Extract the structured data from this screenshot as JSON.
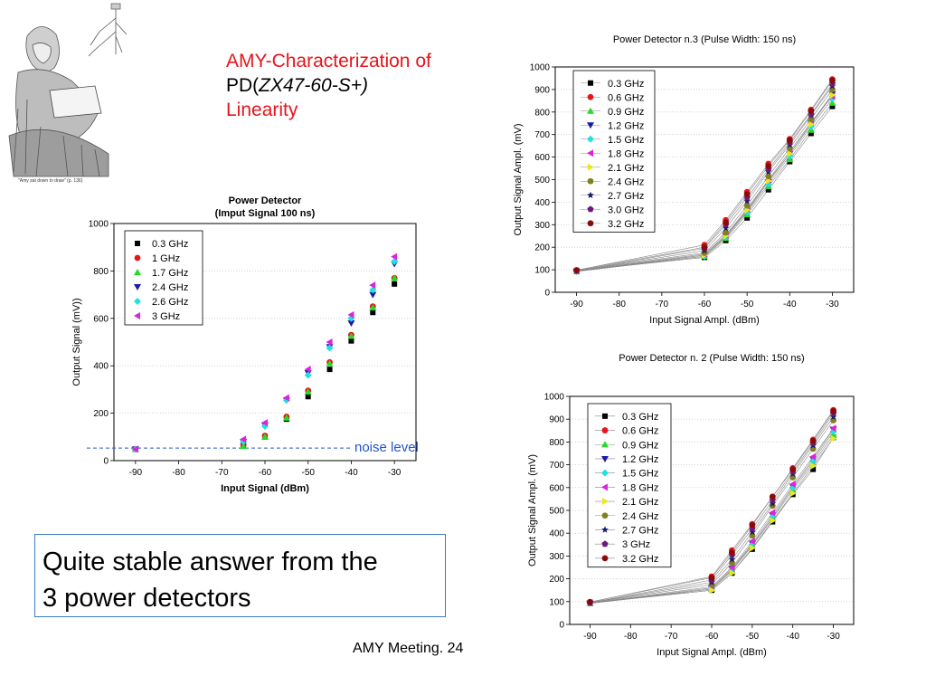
{
  "title": {
    "line1": "AMY-Characterization of",
    "line2_prefix": "PD(",
    "line2_model": "ZX47-60-S+)",
    "line3": "Linearity"
  },
  "illustration": {
    "caption": "\"Amy sat down to draw\" (p. 136)",
    "icon": "girl-drawing-illustration"
  },
  "callout": {
    "line1": "Quite stable answer from the",
    "line2": "3 power detectors"
  },
  "footer": "AMY Meeting. 24",
  "chart_data": [
    {
      "type": "scatter",
      "title": "Power Detector",
      "subtitle": "(Imput Signal 100 ns)",
      "xlabel": "Input Signal (dBm)",
      "ylabel": "Output Signal (mV))",
      "xlim": [
        -95,
        -25
      ],
      "ylim": [
        0,
        1000
      ],
      "xticks": [
        -90,
        -80,
        -70,
        -60,
        -50,
        -40,
        -30
      ],
      "yticks": [
        0,
        200,
        400,
        600,
        800,
        1000
      ],
      "grid": "horizontal-dotted",
      "legend": "top-left",
      "annotation": {
        "text": "noise level",
        "y": 53,
        "color": "#2255cc"
      },
      "x": [
        -90,
        -65,
        -60,
        -55,
        -50,
        -45,
        -40,
        -35,
        -30
      ],
      "series": [
        {
          "name": "0.3 GHz",
          "marker": "square",
          "color": "#000000",
          "values": [
            48,
            65,
            100,
            175,
            270,
            385,
            505,
            625,
            745
          ]
        },
        {
          "name": "1   GHz",
          "marker": "circle",
          "color": "#e8141c",
          "values": [
            48,
            68,
            105,
            185,
            295,
            415,
            530,
            650,
            770
          ]
        },
        {
          "name": "1.7 GHz",
          "marker": "triangle-up",
          "color": "#22dd22",
          "values": [
            48,
            60,
            100,
            180,
            290,
            410,
            525,
            645,
            770
          ]
        },
        {
          "name": "2.4 GHz",
          "marker": "triangle-down",
          "color": "#1a1aa6",
          "values": [
            48,
            80,
            150,
            255,
            370,
            480,
            580,
            700,
            830
          ]
        },
        {
          "name": "2.6 GHz",
          "marker": "diamond",
          "color": "#22e0e0",
          "values": [
            48,
            80,
            145,
            255,
            360,
            475,
            600,
            720,
            840
          ]
        },
        {
          "name": "3   GHz",
          "marker": "triangle-left",
          "color": "#dd22dd",
          "values": [
            48,
            90,
            160,
            265,
            385,
            500,
            615,
            740,
            860
          ]
        }
      ]
    },
    {
      "type": "line",
      "title": "Power Detector n.3 (Pulse Width: 150 ns)",
      "xlabel": "Input Signal Ampl. (dBm)",
      "ylabel": "Output Signal Ampl. (mV)",
      "xlim": [
        -95,
        -25
      ],
      "ylim": [
        0,
        1000
      ],
      "xticks": [
        -90,
        -80,
        -70,
        -60,
        -50,
        -40,
        -30
      ],
      "yticks": [
        0,
        100,
        200,
        300,
        400,
        500,
        600,
        700,
        800,
        900,
        1000
      ],
      "grid": "horizontal-dotted",
      "legend": "top-left",
      "x": [
        -90,
        -60,
        -55,
        -50,
        -45,
        -40,
        -35,
        -30
      ],
      "series": [
        {
          "name": "0.3 GHz",
          "marker": "square",
          "color": "#000000",
          "values": [
            95,
            155,
            230,
            330,
            455,
            580,
            705,
            825
          ]
        },
        {
          "name": "0.6 GHz",
          "marker": "circle",
          "color": "#e8141c",
          "values": [
            98,
            210,
            320,
            445,
            570,
            680,
            810,
            945
          ]
        },
        {
          "name": "0.9 GHz",
          "marker": "triangle-up",
          "color": "#22dd22",
          "values": [
            92,
            160,
            240,
            345,
            470,
            590,
            720,
            840
          ]
        },
        {
          "name": "1.2 GHz",
          "marker": "triangle-down",
          "color": "#1a1aa6",
          "values": [
            93,
            165,
            250,
            360,
            490,
            615,
            750,
            880
          ]
        },
        {
          "name": "1.5 GHz",
          "marker": "diamond",
          "color": "#22e0e0",
          "values": [
            94,
            160,
            245,
            355,
            480,
            605,
            735,
            860
          ]
        },
        {
          "name": "1.8 GHz",
          "marker": "triangle-left",
          "color": "#dd22dd",
          "values": [
            95,
            170,
            255,
            370,
            500,
            625,
            755,
            870
          ]
        },
        {
          "name": "2.1 GHz",
          "marker": "triangle-right",
          "color": "#e8e820",
          "values": [
            96,
            165,
            250,
            365,
            495,
            615,
            745,
            875
          ]
        },
        {
          "name": "2.4 GHz",
          "marker": "circle",
          "color": "#808020",
          "values": [
            97,
            175,
            265,
            385,
            515,
            640,
            770,
            900
          ]
        },
        {
          "name": "2.7 GHz",
          "marker": "star",
          "color": "#1a1a66",
          "values": [
            96,
            185,
            285,
            405,
            535,
            655,
            785,
            915
          ]
        },
        {
          "name": "3.0 GHz",
          "marker": "pentagon",
          "color": "#6a1a80",
          "values": [
            95,
            195,
            300,
            420,
            545,
            665,
            790,
            925
          ]
        },
        {
          "name": "3.2 GHz",
          "marker": "circle",
          "color": "#8a0a0a",
          "values": [
            98,
            200,
            310,
            435,
            560,
            675,
            805,
            940
          ]
        }
      ]
    },
    {
      "type": "line",
      "title": "Power Detector n. 2 (Pulse Width: 150 ns)",
      "xlabel": "Input Signal Ampl. (dBm)",
      "ylabel": "Output Signal Ampl. (mV)",
      "xlim": [
        -95,
        -25
      ],
      "ylim": [
        0,
        1000
      ],
      "xticks": [
        -90,
        -80,
        -70,
        -60,
        -50,
        -40,
        -30
      ],
      "yticks": [
        0,
        100,
        200,
        300,
        400,
        500,
        600,
        700,
        800,
        900,
        1000
      ],
      "grid": "horizontal-dotted",
      "legend": "top-left",
      "x": [
        -90,
        -60,
        -55,
        -50,
        -45,
        -40,
        -35,
        -30
      ],
      "series": [
        {
          "name": "0.3 GHz",
          "marker": "square",
          "color": "#000000",
          "values": [
            93,
            150,
            225,
            330,
            450,
            570,
            680,
            820
          ]
        },
        {
          "name": "0.6 GHz",
          "marker": "circle",
          "color": "#e8141c",
          "values": [
            98,
            210,
            325,
            440,
            560,
            685,
            810,
            940
          ]
        },
        {
          "name": "0.9 GHz",
          "marker": "triangle-up",
          "color": "#22dd22",
          "values": [
            92,
            155,
            235,
            345,
            465,
            590,
            705,
            830
          ]
        },
        {
          "name": "1.2 GHz",
          "marker": "triangle-down",
          "color": "#1a1aa6",
          "values": [
            93,
            160,
            245,
            355,
            480,
            605,
            725,
            855
          ]
        },
        {
          "name": "1.5 GHz",
          "marker": "diamond",
          "color": "#22e0e0",
          "values": [
            94,
            155,
            240,
            350,
            470,
            600,
            715,
            845
          ]
        },
        {
          "name": "1.8 GHz",
          "marker": "triangle-left",
          "color": "#dd22dd",
          "values": [
            95,
            165,
            250,
            365,
            490,
            615,
            735,
            860
          ]
        },
        {
          "name": "2.1 GHz",
          "marker": "triangle-right",
          "color": "#e8e820",
          "values": [
            95,
            150,
            225,
            335,
            455,
            575,
            695,
            815
          ]
        },
        {
          "name": "2.4 GHz",
          "marker": "circle",
          "color": "#808020",
          "values": [
            96,
            175,
            270,
            390,
            520,
            645,
            770,
            895
          ]
        },
        {
          "name": "2.7 GHz",
          "marker": "star",
          "color": "#1a1a66",
          "values": [
            96,
            185,
            285,
            405,
            530,
            660,
            785,
            910
          ]
        },
        {
          "name": "3   GHz",
          "marker": "pentagon",
          "color": "#6a1a80",
          "values": [
            95,
            195,
            305,
            420,
            545,
            670,
            795,
            925
          ]
        },
        {
          "name": "3.2 GHz",
          "marker": "circle",
          "color": "#8a0a0a",
          "values": [
            98,
            205,
            315,
            435,
            560,
            680,
            805,
            935
          ]
        }
      ]
    }
  ]
}
